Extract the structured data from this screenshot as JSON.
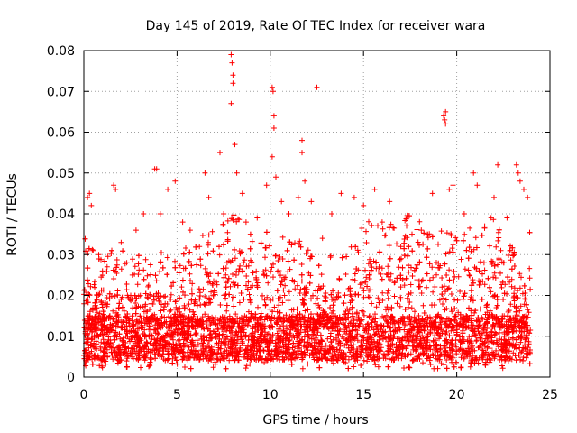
{
  "chart_data": {
    "type": "scatter",
    "title": "Day 145 of 2019, Rate Of TEC Index for receiver wara",
    "xlabel": "GPS time / hours",
    "ylabel": "ROTI / TECUs",
    "xlim": [
      0,
      25
    ],
    "ylim": [
      0,
      0.08
    ],
    "x_ticks": [
      0,
      5,
      10,
      15,
      20,
      25
    ],
    "x_tick_labels": [
      "0",
      "5",
      "10",
      "15",
      "20",
      "25"
    ],
    "y_ticks": [
      0,
      0.01,
      0.02,
      0.03,
      0.04,
      0.05,
      0.06,
      0.07,
      0.08
    ],
    "y_tick_labels": [
      "0",
      "0.01",
      "0.02",
      "0.03",
      "0.04",
      "0.05",
      "0.06",
      "0.07",
      "0.08"
    ],
    "grid": true,
    "marker": "+",
    "series": [
      {
        "name": "ROTI",
        "color": "#ff0000",
        "points": [
          [
            0.2,
            0.044
          ],
          [
            0.3,
            0.045
          ],
          [
            0.4,
            0.042
          ],
          [
            0.5,
            0.031
          ],
          [
            0.8,
            0.03
          ],
          [
            1.0,
            0.026
          ],
          [
            1.6,
            0.047
          ],
          [
            1.7,
            0.046
          ],
          [
            2.0,
            0.033
          ],
          [
            2.3,
            0.028
          ],
          [
            2.6,
            0.025
          ],
          [
            2.8,
            0.036
          ],
          [
            3.2,
            0.04
          ],
          [
            3.8,
            0.051
          ],
          [
            3.9,
            0.051
          ],
          [
            4.1,
            0.04
          ],
          [
            4.5,
            0.046
          ],
          [
            4.9,
            0.048
          ],
          [
            5.3,
            0.038
          ],
          [
            5.7,
            0.036
          ],
          [
            6.2,
            0.032
          ],
          [
            6.5,
            0.05
          ],
          [
            6.7,
            0.044
          ],
          [
            7.3,
            0.055
          ],
          [
            7.5,
            0.04
          ],
          [
            7.9,
            0.079
          ],
          [
            7.95,
            0.077
          ],
          [
            8.0,
            0.074
          ],
          [
            8.0,
            0.072
          ],
          [
            7.9,
            0.067
          ],
          [
            8.1,
            0.057
          ],
          [
            8.2,
            0.05
          ],
          [
            8.5,
            0.045
          ],
          [
            8.7,
            0.038
          ],
          [
            9.3,
            0.039
          ],
          [
            9.8,
            0.047
          ],
          [
            10.1,
            0.071
          ],
          [
            10.15,
            0.07
          ],
          [
            10.2,
            0.064
          ],
          [
            10.2,
            0.061
          ],
          [
            10.1,
            0.054
          ],
          [
            10.3,
            0.049
          ],
          [
            10.6,
            0.043
          ],
          [
            11.0,
            0.04
          ],
          [
            11.5,
            0.044
          ],
          [
            11.7,
            0.058
          ],
          [
            11.7,
            0.055
          ],
          [
            11.85,
            0.048
          ],
          [
            12.2,
            0.043
          ],
          [
            12.5,
            0.071
          ],
          [
            12.8,
            0.034
          ],
          [
            13.3,
            0.04
          ],
          [
            13.8,
            0.045
          ],
          [
            14.5,
            0.044
          ],
          [
            15.0,
            0.042
          ],
          [
            15.6,
            0.046
          ],
          [
            16.0,
            0.038
          ],
          [
            16.4,
            0.043
          ],
          [
            17.0,
            0.032
          ],
          [
            17.6,
            0.035
          ],
          [
            18.1,
            0.036
          ],
          [
            18.7,
            0.045
          ],
          [
            19.3,
            0.064
          ],
          [
            19.35,
            0.063
          ],
          [
            19.4,
            0.062
          ],
          [
            19.4,
            0.065
          ],
          [
            19.6,
            0.046
          ],
          [
            19.8,
            0.047
          ],
          [
            20.4,
            0.04
          ],
          [
            20.9,
            0.05
          ],
          [
            21.1,
            0.047
          ],
          [
            21.5,
            0.037
          ],
          [
            22.0,
            0.044
          ],
          [
            22.2,
            0.052
          ],
          [
            22.7,
            0.039
          ],
          [
            23.2,
            0.052
          ],
          [
            23.3,
            0.05
          ],
          [
            23.4,
            0.048
          ],
          [
            23.6,
            0.046
          ],
          [
            23.8,
            0.044
          ]
        ],
        "band_profile": [
          [
            0,
            0.026
          ],
          [
            1,
            0.02
          ],
          [
            2,
            0.022
          ],
          [
            3,
            0.02
          ],
          [
            4,
            0.022
          ],
          [
            5,
            0.02
          ],
          [
            6,
            0.024
          ],
          [
            7,
            0.026
          ],
          [
            8,
            0.03
          ],
          [
            9,
            0.027
          ],
          [
            10,
            0.026
          ],
          [
            11,
            0.025
          ],
          [
            12,
            0.022
          ],
          [
            13,
            0.02
          ],
          [
            14,
            0.021
          ],
          [
            15,
            0.028
          ],
          [
            16,
            0.029
          ],
          [
            17,
            0.03
          ],
          [
            18,
            0.03
          ],
          [
            19,
            0.028
          ],
          [
            20,
            0.026
          ],
          [
            21,
            0.028
          ],
          [
            22,
            0.03
          ],
          [
            23,
            0.027
          ],
          [
            24,
            0.026
          ]
        ]
      }
    ]
  }
}
